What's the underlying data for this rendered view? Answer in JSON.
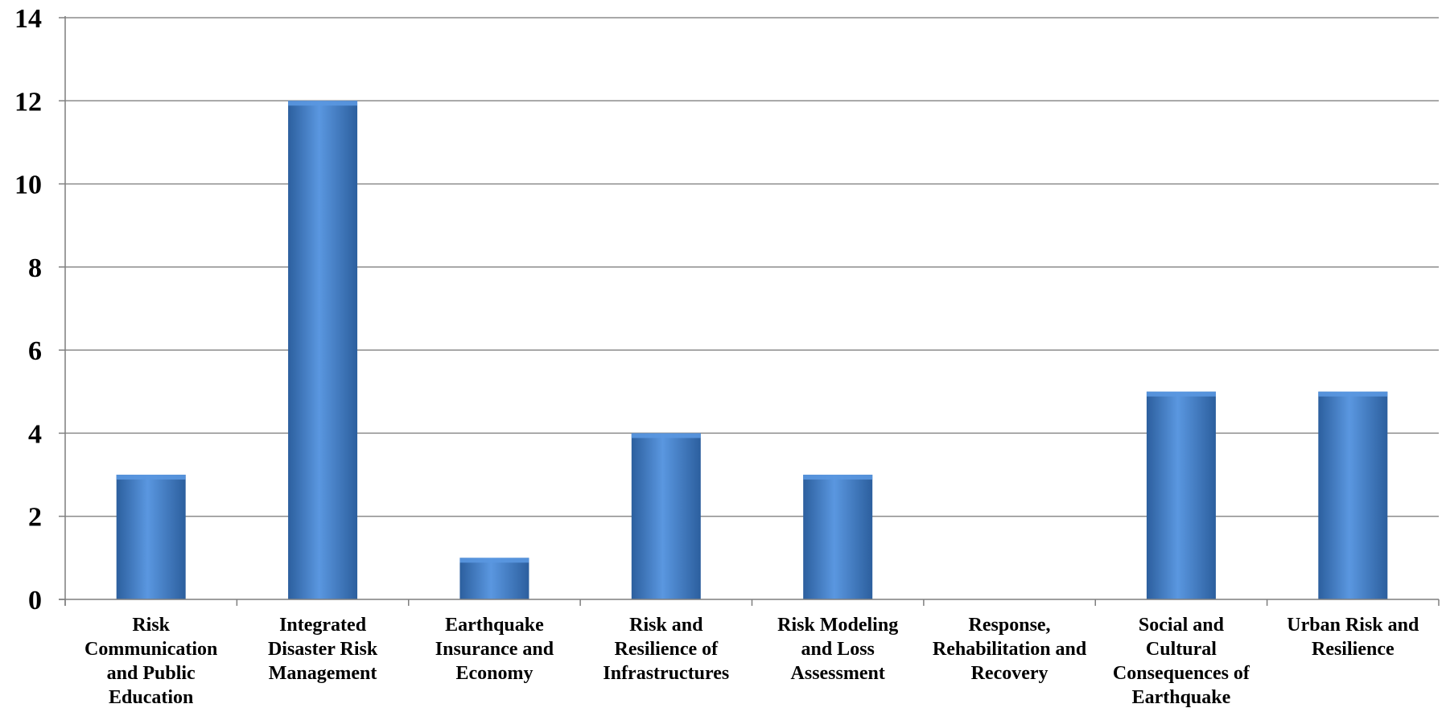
{
  "chart_data": {
    "type": "bar",
    "categories": [
      [
        "Risk",
        "Communication",
        "and Public",
        "Education"
      ],
      [
        "Integrated",
        "Disaster Risk",
        "Management"
      ],
      [
        "Earthquake",
        "Insurance and",
        "Economy"
      ],
      [
        "Risk and",
        "Resilience of",
        "Infrastructures"
      ],
      [
        "Risk Modeling",
        "and Loss",
        "Assessment"
      ],
      [
        "Response,",
        "Rehabilitation and",
        "Recovery"
      ],
      [
        "Social and",
        "Cultural",
        "Consequences of",
        "Earthquake"
      ],
      [
        "Urban Risk and",
        "Resilience"
      ]
    ],
    "values": [
      3,
      12,
      1,
      4,
      3,
      0,
      5,
      5
    ],
    "ylim": [
      0,
      14
    ],
    "yticks": [
      "0",
      "2",
      "4",
      "6",
      "8",
      "10",
      "12",
      "14"
    ],
    "grid": true,
    "colors": {
      "bar": "#3f7fce",
      "bar_light": "#5a97e0",
      "bar_dark": "#2c5f9e",
      "grid": "#8c8c8c",
      "axis": "#7f7f7f"
    }
  }
}
